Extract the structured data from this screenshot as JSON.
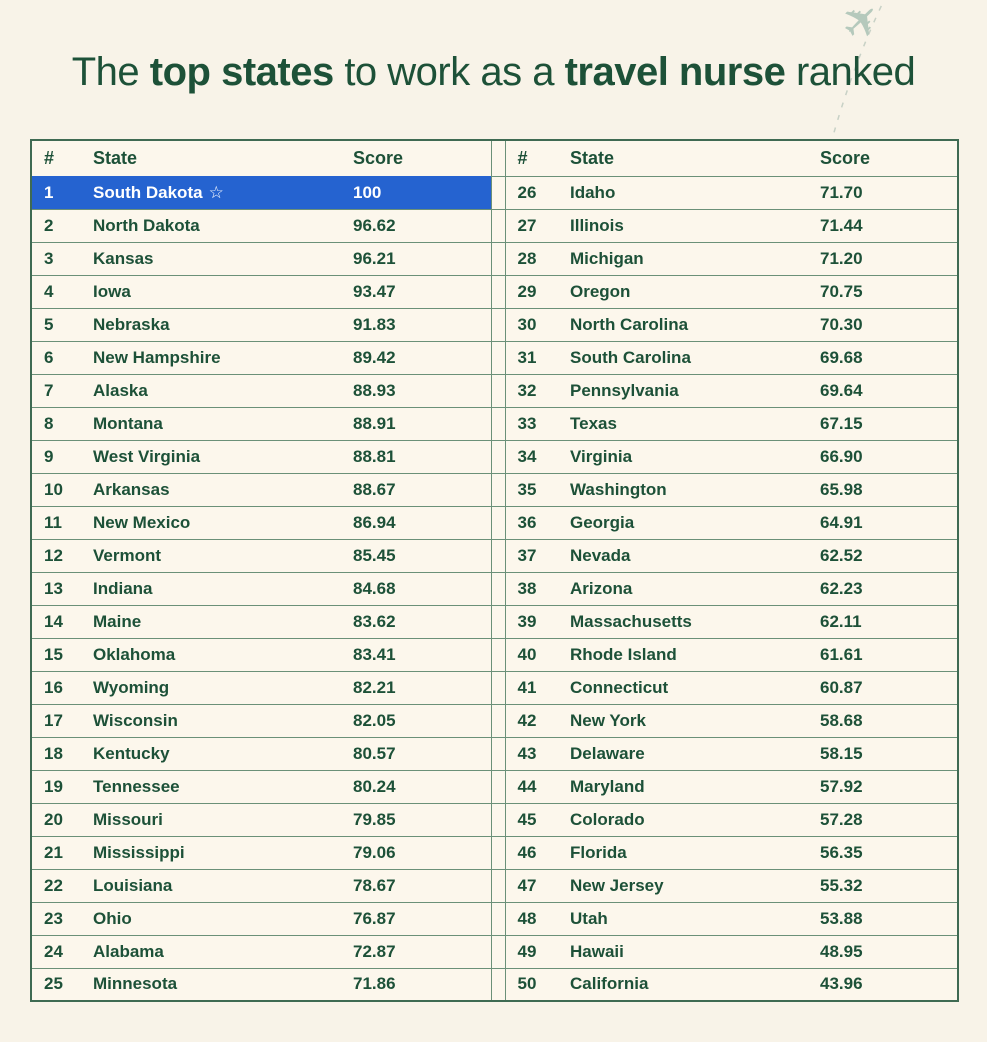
{
  "title": {
    "part1": "The ",
    "bold1": "top states",
    "part2": " to work as a ",
    "bold2": "travel nurse",
    "part3": " ranked"
  },
  "table": {
    "header": {
      "rank": "#",
      "state": "State",
      "score": "Score"
    },
    "star_icon": "☆"
  },
  "chart_data": {
    "type": "table",
    "title": "The top states to work as a travel nurse ranked",
    "columns": [
      "#",
      "State",
      "Score"
    ],
    "layout": "two side-by-side halves, ranks 1-25 left and 26-50 right",
    "highlighted_rank": 1,
    "rows": [
      [
        1,
        "South Dakota",
        "100"
      ],
      [
        2,
        "North Dakota",
        "96.62"
      ],
      [
        3,
        "Kansas",
        "96.21"
      ],
      [
        4,
        "Iowa",
        "93.47"
      ],
      [
        5,
        "Nebraska",
        "91.83"
      ],
      [
        6,
        "New Hampshire",
        "89.42"
      ],
      [
        7,
        "Alaska",
        "88.93"
      ],
      [
        8,
        "Montana",
        "88.91"
      ],
      [
        9,
        "West Virginia",
        "88.81"
      ],
      [
        10,
        "Arkansas",
        "88.67"
      ],
      [
        11,
        "New Mexico",
        "86.94"
      ],
      [
        12,
        "Vermont",
        "85.45"
      ],
      [
        13,
        "Indiana",
        "84.68"
      ],
      [
        14,
        "Maine",
        "83.62"
      ],
      [
        15,
        "Oklahoma",
        "83.41"
      ],
      [
        16,
        "Wyoming",
        "82.21"
      ],
      [
        17,
        "Wisconsin",
        "82.05"
      ],
      [
        18,
        "Kentucky",
        "80.57"
      ],
      [
        19,
        "Tennessee",
        "80.24"
      ],
      [
        20,
        "Missouri",
        "79.85"
      ],
      [
        21,
        "Mississippi",
        "79.06"
      ],
      [
        22,
        "Louisiana",
        "78.67"
      ],
      [
        23,
        "Ohio",
        "76.87"
      ],
      [
        24,
        "Alabama",
        "72.87"
      ],
      [
        25,
        "Minnesota",
        "71.86"
      ],
      [
        26,
        "Idaho",
        "71.70"
      ],
      [
        27,
        "Illinois",
        "71.44"
      ],
      [
        28,
        "Michigan",
        "71.20"
      ],
      [
        29,
        "Oregon",
        "70.75"
      ],
      [
        30,
        "North Carolina",
        "70.30"
      ],
      [
        31,
        "South Carolina",
        "69.68"
      ],
      [
        32,
        "Pennsylvania",
        "69.64"
      ],
      [
        33,
        "Texas",
        "67.15"
      ],
      [
        34,
        "Virginia",
        "66.90"
      ],
      [
        35,
        "Washington",
        "65.98"
      ],
      [
        36,
        "Georgia",
        "64.91"
      ],
      [
        37,
        "Nevada",
        "62.52"
      ],
      [
        38,
        "Arizona",
        "62.23"
      ],
      [
        39,
        "Massachusetts",
        "62.11"
      ],
      [
        40,
        "Rhode Island",
        "61.61"
      ],
      [
        41,
        "Connecticut",
        "60.87"
      ],
      [
        42,
        "New York",
        "58.68"
      ],
      [
        43,
        "Delaware",
        "58.15"
      ],
      [
        44,
        "Maryland",
        "57.92"
      ],
      [
        45,
        "Colorado",
        "57.28"
      ],
      [
        46,
        "Florida",
        "56.35"
      ],
      [
        47,
        "New Jersey",
        "55.32"
      ],
      [
        48,
        "Utah",
        "53.88"
      ],
      [
        49,
        "Hawaii",
        "48.95"
      ],
      [
        50,
        "California",
        "43.96"
      ]
    ]
  },
  "colors": {
    "background": "#f8f3e8",
    "cell_background": "#fcf7ec",
    "text_green": "#1d5138",
    "border_green": "#3f6a52",
    "row_line_green": "#6b9078",
    "highlight_blue": "#2563d0",
    "highlight_text": "#ffffff",
    "plane_sage": "#b5c9bc"
  }
}
